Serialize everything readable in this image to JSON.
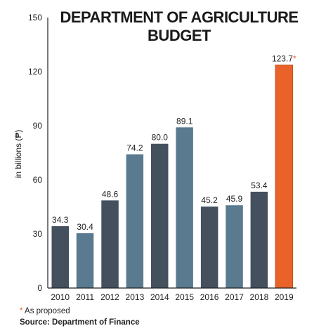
{
  "chart_data": {
    "type": "bar",
    "title_lines": [
      "DEPARTMENT OF AGRICULTURE",
      "BUDGET"
    ],
    "ylabel": "in billions (₱)",
    "xlabel": "",
    "ylim": [
      0,
      150
    ],
    "yticks": [
      0,
      30,
      60,
      90,
      120,
      150
    ],
    "categories": [
      "2010",
      "2011",
      "2012",
      "2013",
      "2014",
      "2015",
      "2016",
      "2017",
      "2018",
      "2019"
    ],
    "values": [
      34.3,
      30.4,
      48.6,
      74.2,
      80.0,
      89.1,
      45.2,
      45.9,
      53.4,
      123.7
    ],
    "value_labels": [
      "34.3",
      "30.4",
      "48.6",
      "74.2",
      "80.0",
      "89.1",
      "45.2",
      "45.9",
      "53.4",
      "123.7"
    ],
    "bar_colors": [
      "#44505e",
      "#5a7b8f",
      "#44505e",
      "#5a7b8f",
      "#44505e",
      "#5a7b8f",
      "#44505e",
      "#5a7b8f",
      "#44505e",
      "#e8622a"
    ],
    "highlight_index": 9,
    "highlight_mark": "*",
    "grid": false
  },
  "colors": {
    "dark_bar": "#44505e",
    "light_bar": "#5a7b8f",
    "proposed_bar": "#e8622a",
    "accent": "#e8622a"
  },
  "footnote": {
    "star": "*",
    "text": "As proposed",
    "source": "Source: Department of Finance"
  }
}
